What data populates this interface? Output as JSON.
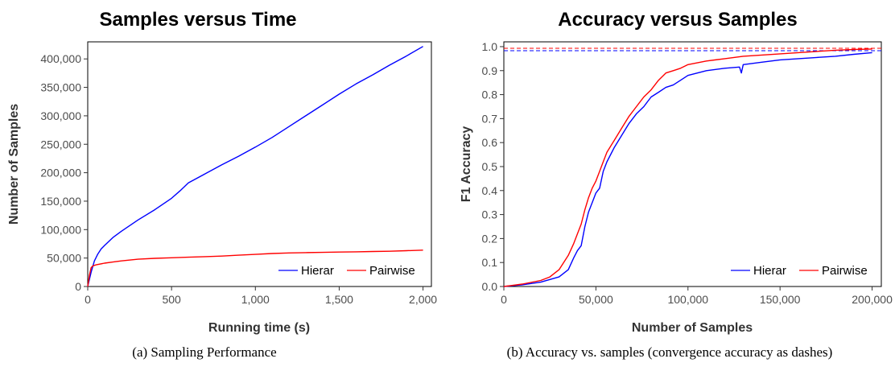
{
  "chart_data": [
    {
      "type": "line",
      "title": "Samples versus Time",
      "xlabel": "Running time (s)",
      "ylabel": "Number of Samples",
      "caption": "(a) Sampling Performance",
      "xlim": [
        0,
        2050
      ],
      "ylim": [
        0,
        430000
      ],
      "xticks": [
        0,
        500,
        1000,
        1500,
        2000
      ],
      "xtick_labels": [
        "0",
        "500",
        "1,000",
        "1,500",
        "2,000"
      ],
      "yticks": [
        0,
        50000,
        100000,
        150000,
        200000,
        250000,
        300000,
        350000,
        400000
      ],
      "ytick_labels": [
        "0",
        "50,000",
        "100,000",
        "150,000",
        "200,000",
        "250,000",
        "300,000",
        "350,000",
        "400,000"
      ],
      "grid": false,
      "legend_position": "bottom-right",
      "series": [
        {
          "name": "Hierar",
          "color": "#0000ff",
          "x": [
            0,
            20,
            40,
            60,
            80,
            100,
            150,
            200,
            300,
            400,
            500,
            550,
            600,
            700,
            800,
            900,
            1000,
            1100,
            1200,
            1300,
            1400,
            1500,
            1600,
            1700,
            1800,
            1900,
            2000
          ],
          "y": [
            0,
            25000,
            45000,
            57000,
            66000,
            72000,
            86000,
            97000,
            117000,
            135000,
            155000,
            168000,
            182000,
            198000,
            214000,
            229000,
            245000,
            262000,
            281000,
            300000,
            319000,
            338000,
            356000,
            372000,
            389000,
            405000,
            422000
          ]
        },
        {
          "name": "Pairwise",
          "color": "#ff0000",
          "x": [
            0,
            10,
            20,
            30,
            50,
            100,
            150,
            200,
            300,
            400,
            500,
            600,
            700,
            800,
            900,
            1000,
            1100,
            1200,
            1300,
            1400,
            1500,
            1600,
            1700,
            1800,
            1900,
            2000
          ],
          "y": [
            0,
            20000,
            33000,
            36000,
            38000,
            41000,
            43000,
            45000,
            48000,
            49500,
            50500,
            51500,
            52500,
            53500,
            55000,
            56500,
            58000,
            59000,
            59500,
            60000,
            60500,
            61000,
            61500,
            62000,
            63000,
            64000
          ]
        }
      ]
    },
    {
      "type": "line",
      "title": "Accuracy versus Samples",
      "xlabel": "Number of Samples",
      "ylabel": "F1 Accuracy",
      "caption": "(b) Accuracy vs. samples (convergence accuracy as dashes)",
      "xlim": [
        0,
        205000
      ],
      "ylim": [
        0,
        1.02
      ],
      "xticks": [
        0,
        50000,
        100000,
        150000,
        200000
      ],
      "xtick_labels": [
        "0",
        "50,000",
        "100,000",
        "150,000",
        "200,000"
      ],
      "yticks": [
        0.0,
        0.1,
        0.2,
        0.3,
        0.4,
        0.5,
        0.6,
        0.7,
        0.8,
        0.9,
        1.0
      ],
      "ytick_labels": [
        "0.0",
        "0.1",
        "0.2",
        "0.3",
        "0.4",
        "0.5",
        "0.6",
        "0.7",
        "0.8",
        "0.9",
        "1.0"
      ],
      "grid": false,
      "legend_position": "bottom-right",
      "reference_lines": [
        {
          "series": "Hierar",
          "y": 0.983,
          "color": "#0000ff",
          "style": "dashed"
        },
        {
          "series": "Pairwise",
          "y": 0.993,
          "color": "#ff0000",
          "style": "dashed"
        }
      ],
      "series": [
        {
          "name": "Hierar",
          "color": "#0000ff",
          "x": [
            0,
            10000,
            20000,
            30000,
            35000,
            38000,
            40000,
            42000,
            44000,
            46000,
            48000,
            50000,
            52000,
            54000,
            56000,
            60000,
            64000,
            68000,
            72000,
            76000,
            78000,
            80000,
            84000,
            88000,
            92000,
            96000,
            100000,
            110000,
            120000,
            128000,
            129000,
            130000,
            140000,
            150000,
            160000,
            170000,
            180000,
            190000,
            200000
          ],
          "y": [
            0,
            0.007,
            0.018,
            0.04,
            0.07,
            0.12,
            0.15,
            0.17,
            0.25,
            0.31,
            0.35,
            0.39,
            0.41,
            0.48,
            0.52,
            0.58,
            0.63,
            0.68,
            0.72,
            0.75,
            0.77,
            0.79,
            0.81,
            0.83,
            0.84,
            0.86,
            0.88,
            0.9,
            0.91,
            0.915,
            0.89,
            0.925,
            0.935,
            0.945,
            0.95,
            0.955,
            0.96,
            0.968,
            0.975
          ]
        },
        {
          "name": "Pairwise",
          "color": "#ff0000",
          "x": [
            0,
            10000,
            20000,
            25000,
            30000,
            35000,
            38000,
            40000,
            42000,
            44000,
            46000,
            48000,
            50000,
            52000,
            54000,
            56000,
            60000,
            64000,
            68000,
            72000,
            76000,
            80000,
            84000,
            88000,
            92000,
            96000,
            100000,
            110000,
            120000,
            130000,
            140000,
            150000,
            160000,
            170000,
            180000,
            190000,
            200000
          ],
          "y": [
            0,
            0.01,
            0.025,
            0.04,
            0.07,
            0.13,
            0.18,
            0.22,
            0.26,
            0.32,
            0.37,
            0.41,
            0.44,
            0.48,
            0.52,
            0.56,
            0.61,
            0.66,
            0.71,
            0.75,
            0.79,
            0.82,
            0.86,
            0.89,
            0.9,
            0.91,
            0.925,
            0.94,
            0.95,
            0.96,
            0.965,
            0.97,
            0.975,
            0.98,
            0.985,
            0.988,
            0.99
          ]
        }
      ]
    }
  ]
}
